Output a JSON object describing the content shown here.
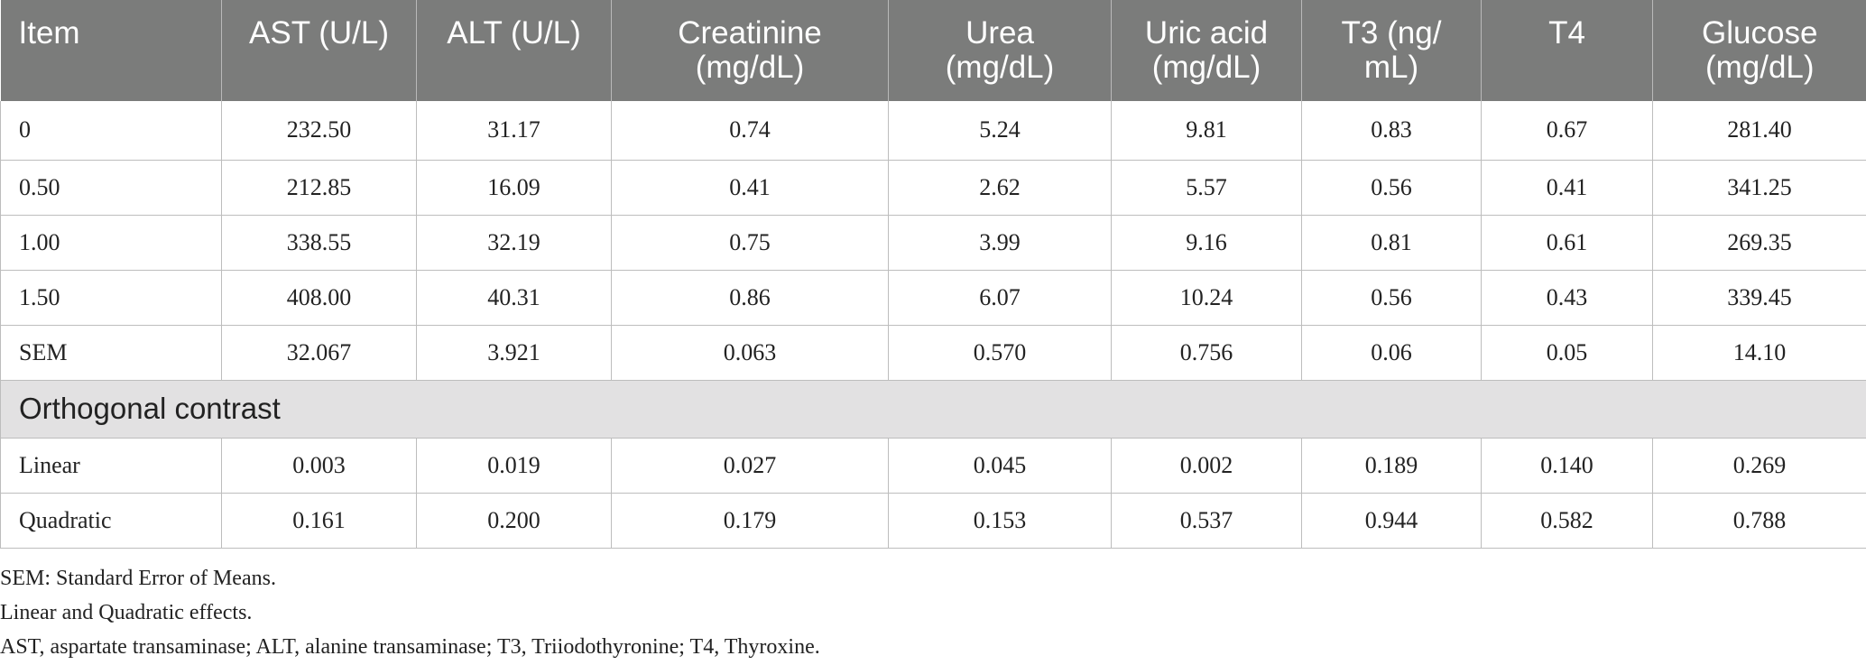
{
  "table": {
    "headers": [
      [
        "Item"
      ],
      [
        "AST (U/L)"
      ],
      [
        "ALT (U/L)"
      ],
      [
        "Creatinine",
        "(mg/dL)"
      ],
      [
        "Urea",
        "(mg/dL)"
      ],
      [
        "Uric acid",
        "(mg/dL)"
      ],
      [
        "T3 (ng/",
        "mL)"
      ],
      [
        "T4"
      ],
      [
        "Glucose",
        "(mg/dL)"
      ]
    ],
    "rows": [
      [
        "0",
        "232.50",
        "31.17",
        "0.74",
        "5.24",
        "9.81",
        "0.83",
        "0.67",
        "281.40"
      ],
      [
        "0.50",
        "212.85",
        "16.09",
        "0.41",
        "2.62",
        "5.57",
        "0.56",
        "0.41",
        "341.25"
      ],
      [
        "1.00",
        "338.55",
        "32.19",
        "0.75",
        "3.99",
        "9.16",
        "0.81",
        "0.61",
        "269.35"
      ],
      [
        "1.50",
        "408.00",
        "40.31",
        "0.86",
        "6.07",
        "10.24",
        "0.56",
        "0.43",
        "339.45"
      ],
      [
        "SEM",
        "32.067",
        "3.921",
        "0.063",
        "0.570",
        "0.756",
        "0.06",
        "0.05",
        "14.10"
      ]
    ],
    "section_label": "Orthogonal contrast",
    "contrast_rows": [
      [
        "Linear",
        "0.003",
        "0.019",
        "0.027",
        "0.045",
        "0.002",
        "0.189",
        "0.140",
        "0.269"
      ],
      [
        "Quadratic",
        "0.161",
        "0.200",
        "0.179",
        "0.153",
        "0.537",
        "0.944",
        "0.582",
        "0.788"
      ]
    ]
  },
  "footnotes": [
    "SEM: Standard Error of Means.",
    "Linear and Quadratic effects.",
    "AST, aspartate transaminase; ALT, alanine transaminase; T3, Triiodothyronine; T4, Thyroxine."
  ],
  "colors": {
    "header_bg": "#7b7c7b",
    "section_bg": "#e2e1e2",
    "grid": "#bdbdbd"
  }
}
